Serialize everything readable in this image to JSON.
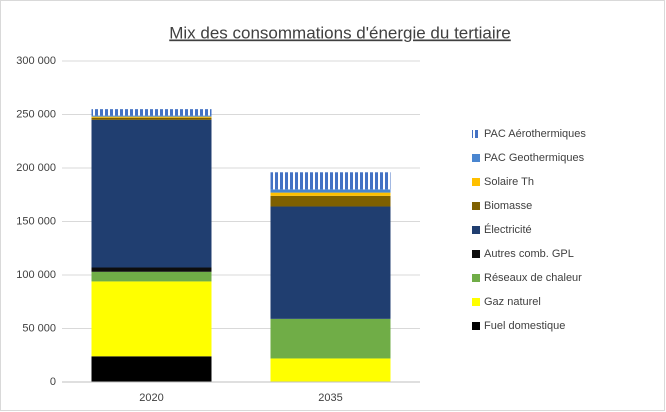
{
  "chart_data": {
    "type": "bar",
    "stacked": true,
    "title": "Mix des consommations d'énergie du tertiaire",
    "categories": [
      "2020",
      "2035"
    ],
    "series": [
      {
        "name": "Fuel domestique",
        "color": "#000000",
        "values": [
          24000,
          0
        ]
      },
      {
        "name": "Gaz naturel",
        "color": "#ffff00",
        "values": [
          70000,
          22000
        ]
      },
      {
        "name": "Réseaux de chaleur",
        "color": "#70ad47",
        "values": [
          9000,
          37000
        ]
      },
      {
        "name": "Autres comb. GPL",
        "color": "#0d0d0d",
        "values": [
          4000,
          0
        ]
      },
      {
        "name": "Électricité",
        "color": "#203e70",
        "values": [
          138000,
          105000
        ]
      },
      {
        "name": "Biomasse",
        "color": "#7f6000",
        "values": [
          2000,
          10000
        ]
      },
      {
        "name": "Solaire Th",
        "color": "#ffc000",
        "values": [
          1000,
          3000
        ]
      },
      {
        "name": "PAC Geothermiques",
        "color": "#4a86d0",
        "values": [
          1000,
          3000
        ]
      },
      {
        "name": "PAC Aérothermiques",
        "color": "#4472c4",
        "hatch": true,
        "values": [
          6000,
          16000
        ]
      }
    ],
    "ylim": [
      0,
      300000
    ],
    "yticks": [
      0,
      {
        "value": 50000,
        "label": "50 000"
      },
      {
        "value": 100000,
        "label": "100 000"
      },
      {
        "value": 150000,
        "label": "150 000"
      },
      {
        "value": 200000,
        "label": "200 000"
      },
      {
        "value": 250000,
        "label": "250 000"
      },
      {
        "value": 300000,
        "label": "300 000"
      }
    ],
    "grid": true,
    "legend": "right"
  }
}
